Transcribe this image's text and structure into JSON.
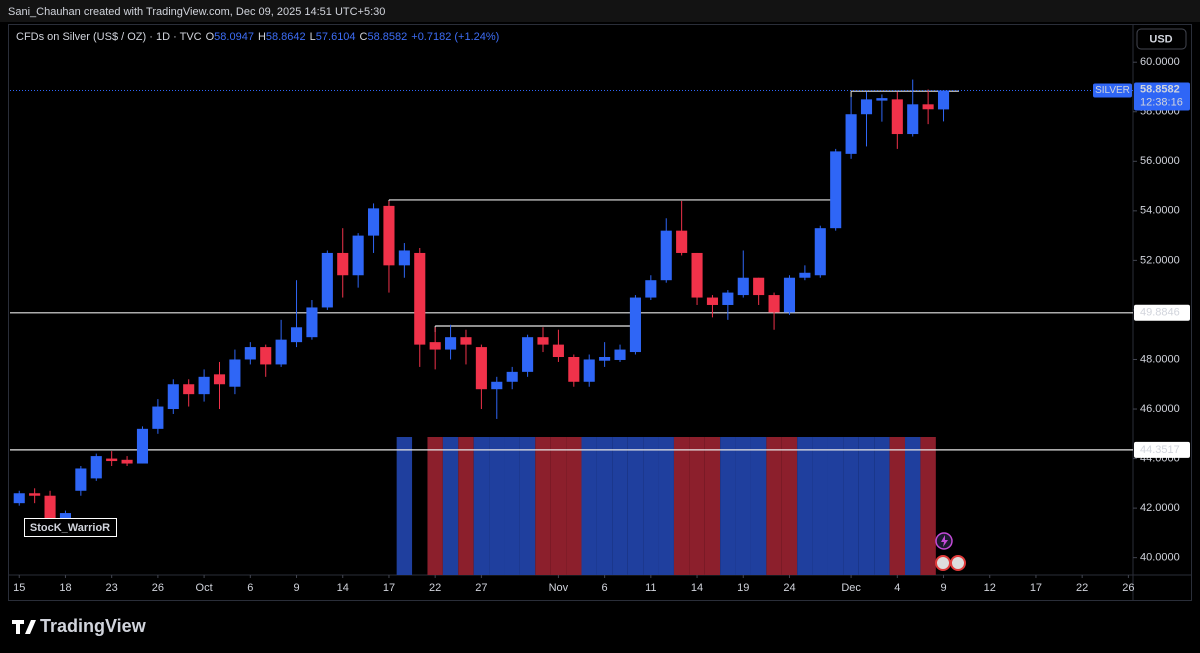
{
  "header": {
    "credit": "Sani_Chauhan created with TradingView.com, Dec 09, 2025 14:51 UTC+5:30",
    "logo": "TradingView"
  },
  "chart_data": {
    "type": "candlestick",
    "title": "CFDs on Silver (US$ / OZ) · 1D · TVC",
    "ohlc_labels": [
      "O",
      "H",
      "L",
      "C"
    ],
    "change": "+0.7182 (+1.24%)",
    "currency": "USD",
    "symbol_badge": "SILVER",
    "countdown": "12:38:16",
    "watermark": "StocK_WarrioR",
    "open": [
      42.2,
      42.6,
      42.5,
      41.6,
      42.7,
      43.2,
      44.0,
      43.95,
      43.8,
      45.2,
      46.0,
      47.0,
      46.6,
      47.4,
      46.9,
      48.0,
      48.5,
      47.8,
      48.7,
      48.9,
      50.1,
      52.3,
      51.4,
      53.0,
      54.2,
      51.8,
      52.3,
      48.7,
      48.4,
      48.9,
      48.5,
      46.8,
      47.1,
      47.5,
      48.9,
      48.6,
      48.1,
      47.1,
      47.95,
      47.98,
      48.3,
      50.5,
      51.2,
      53.2,
      52.3,
      50.5,
      50.2,
      50.6,
      51.3,
      50.6,
      49.9,
      51.3,
      51.4,
      53.3,
      56.3,
      57.9,
      58.45,
      58.5,
      57.1,
      58.3,
      58.0947
    ],
    "high": [
      42.7,
      42.8,
      42.7,
      41.9,
      43.7,
      44.2,
      44.3,
      44.1,
      45.3,
      46.4,
      47.2,
      47.2,
      47.6,
      47.9,
      48.4,
      48.7,
      48.6,
      49.6,
      51.2,
      50.4,
      52.4,
      53.3,
      53.1,
      54.3,
      54.4,
      52.7,
      52.5,
      49.3,
      49.4,
      49.2,
      48.6,
      47.3,
      47.7,
      49.0,
      49.3,
      49.2,
      48.2,
      48.2,
      48.7,
      48.6,
      50.6,
      51.4,
      53.7,
      54.4,
      52.3,
      50.6,
      50.8,
      52.4,
      51.3,
      50.7,
      51.4,
      51.8,
      53.4,
      56.5,
      58.6,
      58.8,
      58.7,
      58.8,
      59.3,
      58.9,
      58.8642
    ],
    "low": [
      42.1,
      42.2,
      41.3,
      41.4,
      42.5,
      43.1,
      43.7,
      43.7,
      43.8,
      45.0,
      45.8,
      46.1,
      46.3,
      46.0,
      46.6,
      47.8,
      47.3,
      47.7,
      48.5,
      48.8,
      50.0,
      50.5,
      50.9,
      52.3,
      50.7,
      51.3,
      47.7,
      47.6,
      48.0,
      47.8,
      46.0,
      45.6,
      46.8,
      47.3,
      48.3,
      47.9,
      46.9,
      46.9,
      47.7,
      47.9,
      48.2,
      50.4,
      51.1,
      52.2,
      50.2,
      49.7,
      49.6,
      50.5,
      50.2,
      49.2,
      49.8,
      51.2,
      51.3,
      53.2,
      56.1,
      56.6,
      57.6,
      56.5,
      57.0,
      57.5,
      57.6104
    ],
    "close": [
      42.6,
      42.5,
      41.5,
      41.8,
      43.6,
      44.1,
      43.9,
      43.8,
      45.2,
      46.1,
      47.0,
      46.6,
      47.3,
      47.0,
      48.0,
      48.5,
      47.8,
      48.8,
      49.3,
      50.1,
      52.3,
      51.4,
      53.0,
      54.1,
      51.8,
      52.4,
      48.6,
      48.4,
      48.9,
      48.6,
      46.8,
      47.1,
      47.5,
      48.9,
      48.6,
      48.1,
      47.1,
      48.0,
      48.1,
      48.4,
      50.5,
      51.2,
      53.2,
      52.3,
      50.5,
      50.2,
      50.7,
      51.3,
      50.6,
      49.9,
      51.3,
      51.5,
      53.3,
      56.4,
      57.9,
      58.5,
      58.55,
      57.1,
      58.3,
      58.1,
      58.8582
    ],
    "up_color": "#2f66f6",
    "down_color": "#f0324a",
    "overlay_colors": [
      null,
      null,
      null,
      null,
      null,
      null,
      null,
      null,
      null,
      null,
      null,
      null,
      null,
      null,
      null,
      null,
      null,
      null,
      null,
      null,
      null,
      null,
      null,
      null,
      null,
      "#1f3f9e",
      null,
      "#8c1f2c",
      "#1f3f9e",
      "#8c1f2c",
      "#1f3f9e",
      "#1f3f9e",
      "#1f3f9e",
      "#1f3f9e",
      "#8c1f2c",
      "#8c1f2c",
      "#8c1f2c",
      "#1f3f9e",
      "#1f3f9e",
      "#1f3f9e",
      "#1f3f9e",
      "#1f3f9e",
      "#1f3f9e",
      "#8c1f2c",
      "#8c1f2c",
      "#8c1f2c",
      "#1f3f9e",
      "#1f3f9e",
      "#1f3f9e",
      "#8c1f2c",
      "#8c1f2c",
      "#1f3f9e",
      "#1f3f9e",
      "#1f3f9e",
      "#1f3f9e",
      "#1f3f9e",
      "#1f3f9e",
      "#8c1f2c",
      "#1f3f9e",
      "#8c1f2c",
      null
    ],
    "levels": [
      49.8846,
      44.3517
    ],
    "segments": [
      {
        "from": 24,
        "to": 52.7,
        "value": 54.44
      },
      {
        "from": 27,
        "to": 39.7,
        "value": 49.35
      },
      {
        "from": 54,
        "to": 61,
        "value": 58.83
      }
    ],
    "xlim": [
      -0.6,
      72.3
    ],
    "xticks": [
      {
        "value": 0,
        "label": "15"
      },
      {
        "value": 3,
        "label": "18"
      },
      {
        "value": 6,
        "label": "23"
      },
      {
        "value": 9,
        "label": "26"
      },
      {
        "value": 12,
        "label": "Oct"
      },
      {
        "value": 15,
        "label": "6"
      },
      {
        "value": 18,
        "label": "9"
      },
      {
        "value": 21,
        "label": "14"
      },
      {
        "value": 24,
        "label": "17"
      },
      {
        "value": 27,
        "label": "22"
      },
      {
        "value": 30,
        "label": "27"
      },
      {
        "value": 35,
        "label": "Nov"
      },
      {
        "value": 38,
        "label": "6"
      },
      {
        "value": 41,
        "label": "11"
      },
      {
        "value": 44,
        "label": "14"
      },
      {
        "value": 47,
        "label": "19"
      },
      {
        "value": 50,
        "label": "24"
      },
      {
        "value": 54,
        "label": "Dec"
      },
      {
        "value": 57,
        "label": "4"
      },
      {
        "value": 60,
        "label": "9"
      },
      {
        "value": 63,
        "label": "12"
      },
      {
        "value": 66,
        "label": "17"
      },
      {
        "value": 69,
        "label": "22"
      },
      {
        "value": 72,
        "label": "26"
      }
    ],
    "ylim": [
      39.3,
      61.3
    ],
    "yticks": [
      {
        "value": 40,
        "label": "40.0000"
      },
      {
        "value": 42,
        "label": "42.0000"
      },
      {
        "value": 44,
        "label": "44.0000"
      },
      {
        "value": 46,
        "label": "46.0000"
      },
      {
        "value": 48,
        "label": "48.0000"
      },
      {
        "value": 50,
        "label": "50.0000"
      },
      {
        "value": 52,
        "label": "52.0000"
      },
      {
        "value": 54,
        "label": "54.0000"
      },
      {
        "value": 56,
        "label": "56.0000"
      },
      {
        "value": 58,
        "label": "58.0000"
      },
      {
        "value": 60,
        "label": "60.0000"
      }
    ],
    "grid": false
  }
}
